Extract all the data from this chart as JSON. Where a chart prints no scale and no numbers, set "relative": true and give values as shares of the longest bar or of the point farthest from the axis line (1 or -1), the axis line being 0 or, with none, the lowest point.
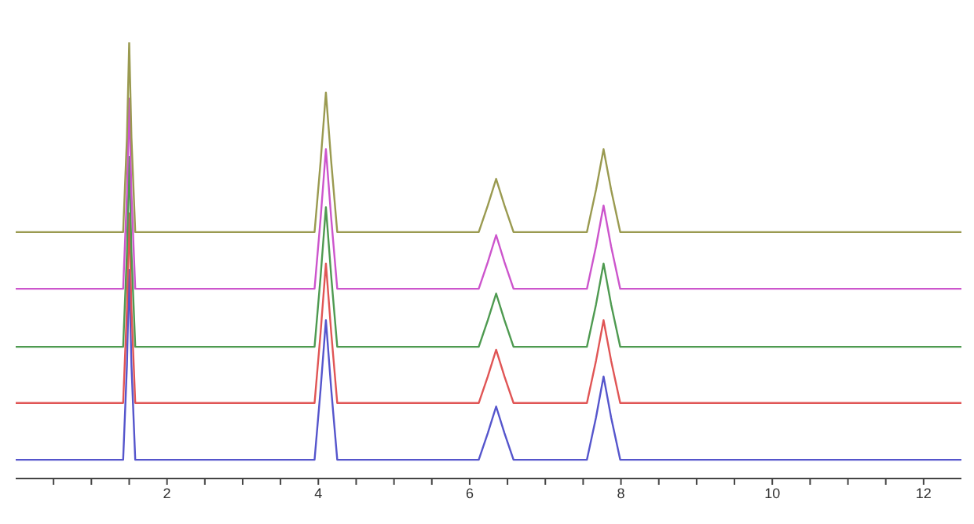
{
  "chart_data": {
    "type": "line",
    "relative": true,
    "x": [
      0,
      1.42,
      1.47,
      1.5,
      1.53,
      1.58,
      3.95,
      4.03,
      4.1,
      4.17,
      4.25,
      6.12,
      6.24,
      6.35,
      6.46,
      6.58,
      7.55,
      7.67,
      7.77,
      7.87,
      7.99,
      12.5
    ],
    "xlim": [
      0,
      12.5
    ],
    "xticks": [
      {
        "value": 0.5,
        "label": null
      },
      {
        "value": 1,
        "label": null
      },
      {
        "value": 1.5,
        "label": null
      },
      2,
      {
        "value": 2.5,
        "label": null
      },
      {
        "value": 3,
        "label": null
      },
      {
        "value": 3.5,
        "label": null
      },
      4,
      {
        "value": 4.5,
        "label": null
      },
      {
        "value": 5,
        "label": null
      },
      {
        "value": 5.5,
        "label": null
      },
      6,
      {
        "value": 6.5,
        "label": null
      },
      {
        "value": 7,
        "label": null
      },
      {
        "value": 7.5,
        "label": null
      },
      8,
      {
        "value": 8.5,
        "label": null
      },
      {
        "value": 9,
        "label": null
      },
      {
        "value": 9.5,
        "label": null
      },
      10,
      {
        "value": 10.5,
        "label": null
      },
      {
        "value": 11,
        "label": null
      },
      {
        "value": 11.5,
        "label": null
      },
      12
    ],
    "tick_labels": "x",
    "grid": false,
    "legend": false,
    "marker": "none",
    "line_style": "solid",
    "series": [
      {
        "color": "#5555cc",
        "values": [
          0.043,
          0.043,
          0.259,
          0.478,
          0.259,
          0.043,
          0.043,
          0.205,
          0.363,
          0.205,
          0.043,
          0.043,
          0.104,
          0.165,
          0.104,
          0.043,
          0.043,
          0.14,
          0.234,
          0.14,
          0.043,
          0.043
        ]
      },
      {
        "color": "#e05555",
        "values": [
          0.173,
          0.173,
          0.388,
          0.608,
          0.388,
          0.173,
          0.173,
          0.335,
          0.493,
          0.335,
          0.173,
          0.173,
          0.234,
          0.295,
          0.234,
          0.173,
          0.173,
          0.27,
          0.363,
          0.27,
          0.173,
          0.173
        ]
      },
      {
        "color": "#4e9a50",
        "values": [
          0.302,
          0.302,
          0.518,
          0.737,
          0.518,
          0.302,
          0.302,
          0.464,
          0.622,
          0.464,
          0.302,
          0.302,
          0.363,
          0.424,
          0.363,
          0.302,
          0.302,
          0.399,
          0.493,
          0.399,
          0.302,
          0.302
        ]
      },
      {
        "color": "#cc55cc",
        "values": [
          0.435,
          0.435,
          0.651,
          0.871,
          0.651,
          0.435,
          0.435,
          0.597,
          0.755,
          0.597,
          0.435,
          0.435,
          0.496,
          0.558,
          0.496,
          0.435,
          0.435,
          0.532,
          0.626,
          0.532,
          0.435,
          0.435
        ]
      },
      {
        "color": "#9a9a50",
        "values": [
          0.565,
          0.565,
          0.781,
          1,
          0.781,
          0.565,
          0.565,
          0.727,
          0.885,
          0.727,
          0.565,
          0.565,
          0.626,
          0.687,
          0.626,
          0.565,
          0.565,
          0.662,
          0.755,
          0.662,
          0.565,
          0.565
        ]
      }
    ]
  }
}
